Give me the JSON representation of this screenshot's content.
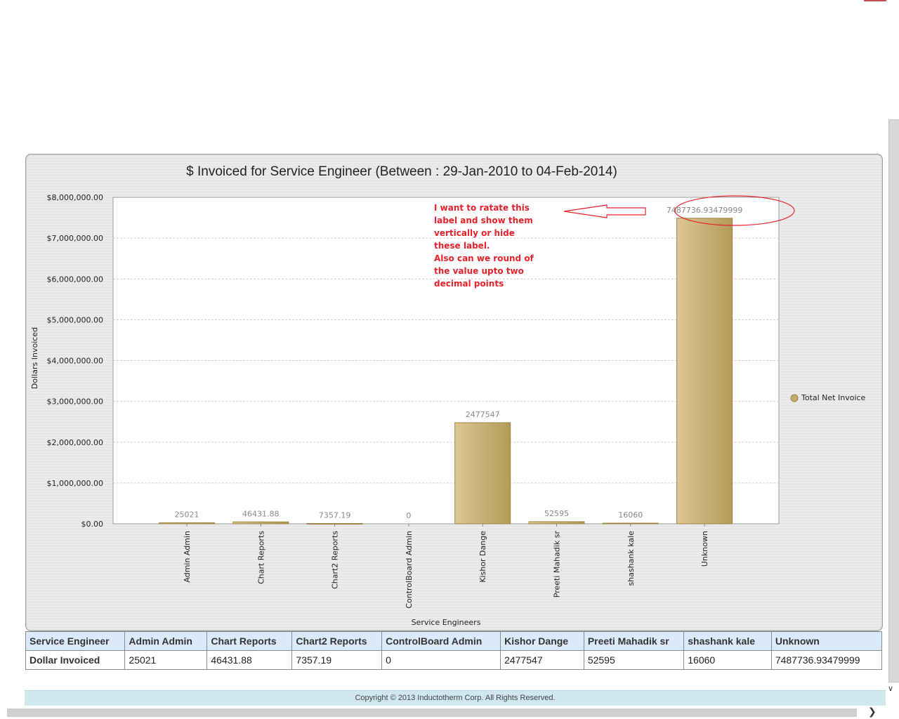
{
  "chart_data": {
    "type": "bar",
    "title": "$ Invoiced for Service Engineer (Between : 29-Jan-2010 to 04-Feb-2014)",
    "xlabel": "Service Engineers",
    "ylabel": "Dollars Invoiced",
    "categories": [
      "Admin Admin",
      "Chart Reports",
      "Chart2 Reports",
      "ControlBoard Admin",
      "Kishor Dange",
      "Preeti Mahadik sr",
      "shashank kale",
      "Unknown"
    ],
    "series": [
      {
        "name": "Total Net Invoice",
        "values": [
          25021,
          46431.88,
          7357.19,
          0,
          2477547,
          52595,
          16060,
          7487736.93479999
        ],
        "labels": [
          "25021",
          "46431.88",
          "7357.19",
          "0",
          "2477547",
          "52595",
          "16060",
          "7487736.93479999"
        ]
      }
    ],
    "ylim": [
      0,
      8000000
    ],
    "yticks": [
      "$0.00",
      "$1,000,000.00",
      "$2,000,000.00",
      "$3,000,000.00",
      "$4,000,000.00",
      "$5,000,000.00",
      "$6,000,000.00",
      "$7,000,000.00",
      "$8,000,000.00"
    ],
    "grid": true,
    "legend_position": "right",
    "colors": {
      "bar_dark": "#b39a58",
      "bar_light": "#dcc894",
      "bar_edge": "#9c8445",
      "annotation": "#e8212b"
    }
  },
  "annotation": {
    "lines": [
      "I want to ratate this",
      "label and show them",
      "vertically or hide",
      "these label.",
      "Also can we round of",
      "the value upto two",
      "decimal points"
    ]
  },
  "table": {
    "header": [
      "Service Engineer",
      "Admin Admin",
      "Chart Reports",
      "Chart2 Reports",
      "ControlBoard Admin",
      "Kishor Dange",
      "Preeti Mahadik sr",
      "shashank kale",
      "Unknown"
    ],
    "row": [
      "Dollar Invoiced",
      "25021",
      "46431.88",
      "7357.19",
      "0",
      "2477547",
      "52595",
      "16060",
      "7487736.93479999"
    ]
  },
  "footer": {
    "text": "Copyright © 2013 Inductotherm Corp. All Rights Reserved."
  },
  "scrollbars": {
    "down_arrow": "∨",
    "right_arrow": "❯"
  }
}
